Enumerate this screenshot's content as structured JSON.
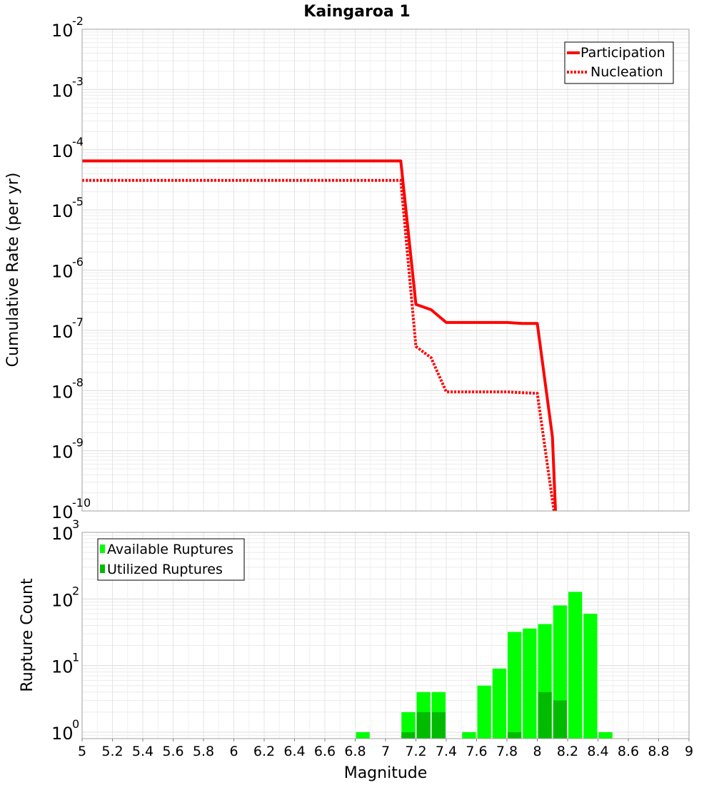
{
  "title": "Kaingaroa 1",
  "chart_data": [
    {
      "type": "line",
      "title": "Kaingaroa 1",
      "xlabel": "Magnitude",
      "ylabel": "Cumulative Rate (per yr)",
      "yscale": "log",
      "xlim": [
        5,
        9
      ],
      "ylim": [
        1e-10,
        0.01
      ],
      "grid": true,
      "legend_position": "top-right",
      "y_tick_labels": [
        {
          "exp": -10,
          "base": "10",
          "pow": "-10"
        },
        {
          "exp": -9,
          "base": "10",
          "pow": "-9"
        },
        {
          "exp": -8,
          "base": "10",
          "pow": "-8"
        },
        {
          "exp": -7,
          "base": "10",
          "pow": "-7"
        },
        {
          "exp": -6,
          "base": "10",
          "pow": "-6"
        },
        {
          "exp": -5,
          "base": "10",
          "pow": "-5"
        },
        {
          "exp": -4,
          "base": "10",
          "pow": "-4"
        },
        {
          "exp": -3,
          "base": "10",
          "pow": "-3"
        },
        {
          "exp": -2,
          "base": "10",
          "pow": "-2"
        }
      ],
      "series": [
        {
          "name": "Participation",
          "color": "#ff0000",
          "style": "solid",
          "x": [
            5.0,
            7.1,
            7.2,
            7.3,
            7.4,
            7.8,
            7.9,
            8.0,
            8.1,
            8.12
          ],
          "y": [
            6.5e-05,
            6.5e-05,
            2.7e-07,
            2.2e-07,
            1.35e-07,
            1.35e-07,
            1.3e-07,
            1.3e-07,
            1.7e-09,
            1e-10
          ]
        },
        {
          "name": "Nucleation",
          "color": "#ff0000",
          "style": "dotted",
          "x": [
            5.0,
            7.1,
            7.2,
            7.3,
            7.4,
            7.8,
            7.9,
            8.0,
            8.1,
            8.11
          ],
          "y": [
            3.1e-05,
            3.1e-05,
            5.4e-08,
            3.5e-08,
            9.5e-09,
            9.5e-09,
            9.2e-09,
            9e-09,
            1.5e-10,
            1e-10
          ]
        }
      ]
    },
    {
      "type": "bar",
      "xlabel": "Magnitude",
      "ylabel": "Rupture Count",
      "yscale": "log",
      "xlim": [
        5,
        9
      ],
      "ylim": [
        0.8,
        1000
      ],
      "grid": true,
      "legend_position": "top-left",
      "bar_width": 0.1,
      "x_tick_labels": [
        "5",
        "5.2",
        "5.4",
        "5.6",
        "5.8",
        "6",
        "6.2",
        "6.4",
        "6.6",
        "6.8",
        "7",
        "7.2",
        "7.4",
        "7.6",
        "7.8",
        "8",
        "8.2",
        "8.4",
        "8.6",
        "8.8",
        "9"
      ],
      "y_tick_labels": [
        {
          "exp": 0,
          "base": "10",
          "pow": "0"
        },
        {
          "exp": 1,
          "base": "10",
          "pow": "1"
        },
        {
          "exp": 2,
          "base": "10",
          "pow": "2"
        },
        {
          "exp": 3,
          "base": "10",
          "pow": "3"
        }
      ],
      "x": [
        6.85,
        7.15,
        7.25,
        7.35,
        7.55,
        7.65,
        7.75,
        7.85,
        7.95,
        8.05,
        8.15,
        8.25,
        8.35,
        8.45
      ],
      "series": [
        {
          "name": "Available Ruptures",
          "color": "#00ff00",
          "values": [
            1,
            2,
            4,
            4,
            1,
            5,
            9,
            32,
            36,
            42,
            80,
            128,
            60,
            1
          ]
        },
        {
          "name": "Utilized Ruptures",
          "color": "#00bb00",
          "values": [
            0,
            1,
            2,
            2,
            0,
            0,
            0,
            1,
            0,
            4,
            3,
            0,
            0,
            0
          ]
        }
      ]
    }
  ]
}
